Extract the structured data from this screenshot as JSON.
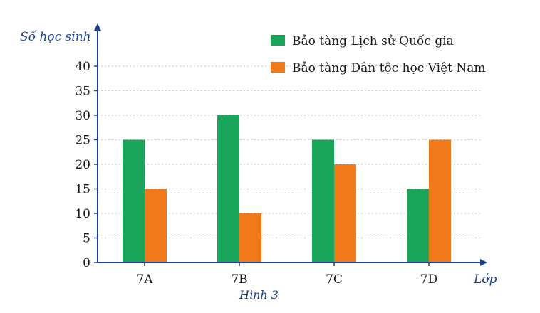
{
  "chart_data": {
    "type": "bar",
    "ylabel": "Số học sinh",
    "xlabel": "Lớp",
    "caption": "Hình 3",
    "categories": [
      "7A",
      "7B",
      "7C",
      "7D"
    ],
    "yticks": [
      0,
      5,
      10,
      15,
      20,
      25,
      30,
      35,
      40
    ],
    "ylim": [
      0,
      40
    ],
    "grid": "dashed horizontal",
    "legend_position": "top-right",
    "series": [
      {
        "name": "Bảo tàng Lịch sử Quốc gia",
        "color": "#1aa55a",
        "values": [
          25,
          30,
          25,
          15
        ]
      },
      {
        "name": "Bảo tàng Dân tộc học Việt Nam",
        "color": "#f07a1a",
        "values": [
          15,
          10,
          20,
          25
        ]
      }
    ]
  },
  "colors": {
    "axis": "#1c3f8f",
    "grid": "#c7c7c7"
  }
}
